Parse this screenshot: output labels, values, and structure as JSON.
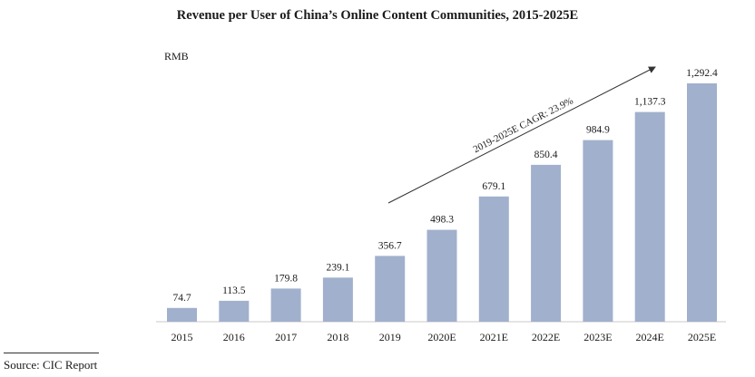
{
  "chart_data": {
    "type": "bar",
    "title": "Revenue per User of China’s Online Content Communities, 2015-2025E",
    "unit_label": "RMB",
    "categories": [
      "2015",
      "2016",
      "2017",
      "2018",
      "2019",
      "2020E",
      "2021E",
      "2022E",
      "2023E",
      "2024E",
      "2025E"
    ],
    "values": [
      74.7,
      113.5,
      179.8,
      239.1,
      356.7,
      498.3,
      679.1,
      850.4,
      984.9,
      1137.3,
      1292.4
    ],
    "value_labels": [
      "74.7",
      "113.5",
      "179.8",
      "239.1",
      "356.7",
      "498.3",
      "679.1",
      "850.4",
      "984.9",
      "1,137.3",
      "1,292.4"
    ],
    "annotation": "2019-2025E CAGR: 23.9%",
    "bar_color": "#a1b0cc",
    "ylim": [
      0,
      1292.4
    ],
    "grid": false
  },
  "source": "Source: CIC Report"
}
